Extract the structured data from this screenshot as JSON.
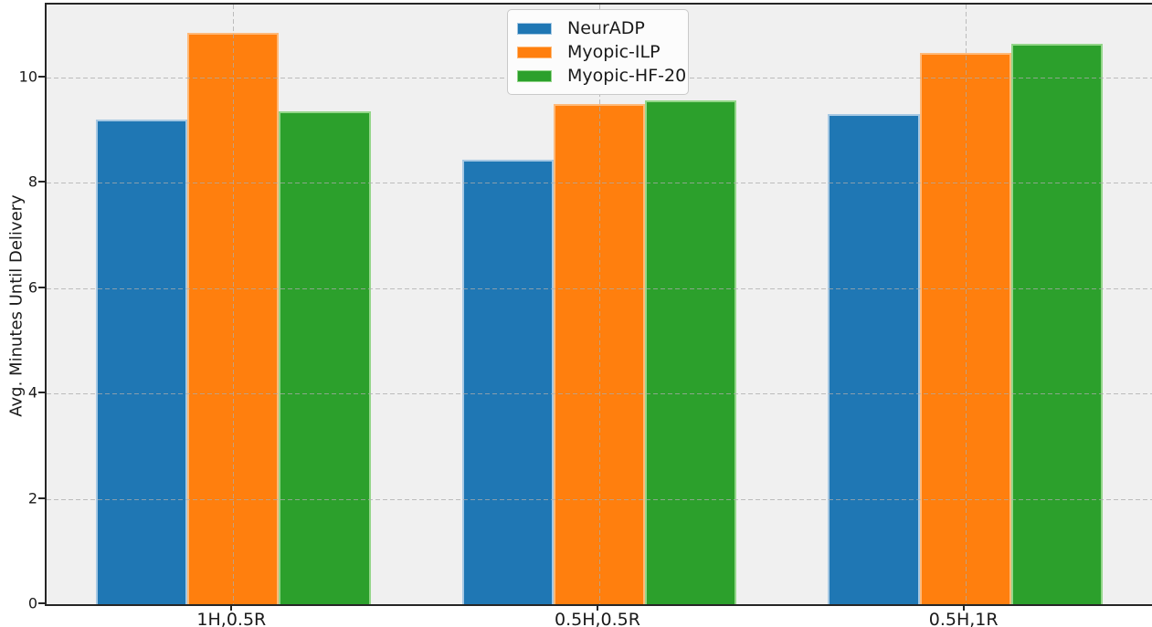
{
  "chart_data": {
    "type": "bar",
    "title": "",
    "xlabel": "",
    "ylabel": "Avg. Minutes Until Delivery",
    "categories": [
      "1H,0.5R",
      "0.5H,0.5R",
      "0.5H,1R"
    ],
    "series": [
      {
        "name": "NeurADP",
        "color": "#1f77b4",
        "edge_color": "#a6c8e3",
        "values": [
          9.2,
          8.43,
          9.3
        ]
      },
      {
        "name": "Myopic-ILP",
        "color": "#ff7f0e",
        "edge_color": "#ffb978",
        "values": [
          10.84,
          9.5,
          10.47
        ]
      },
      {
        "name": "Myopic-HF-20",
        "color": "#2ca02c",
        "edge_color": "#93d689",
        "values": [
          9.36,
          9.56,
          10.64
        ]
      }
    ],
    "yticks": [
      0,
      2,
      4,
      6,
      8,
      10
    ],
    "ylim": [
      0,
      11.38
    ],
    "xlim_margin": 0.51,
    "bar_width": 0.25,
    "grid": {
      "visible": true,
      "axis": "both",
      "style": "dashed",
      "on_top": true,
      "color": "#ababab"
    },
    "legend": {
      "position": "upper-center",
      "frame": true
    },
    "colors": {
      "plot_background": "#f0f0f0",
      "figure_background": "#ffffff",
      "spine": "#262626",
      "text": "#1a1a1a"
    }
  }
}
